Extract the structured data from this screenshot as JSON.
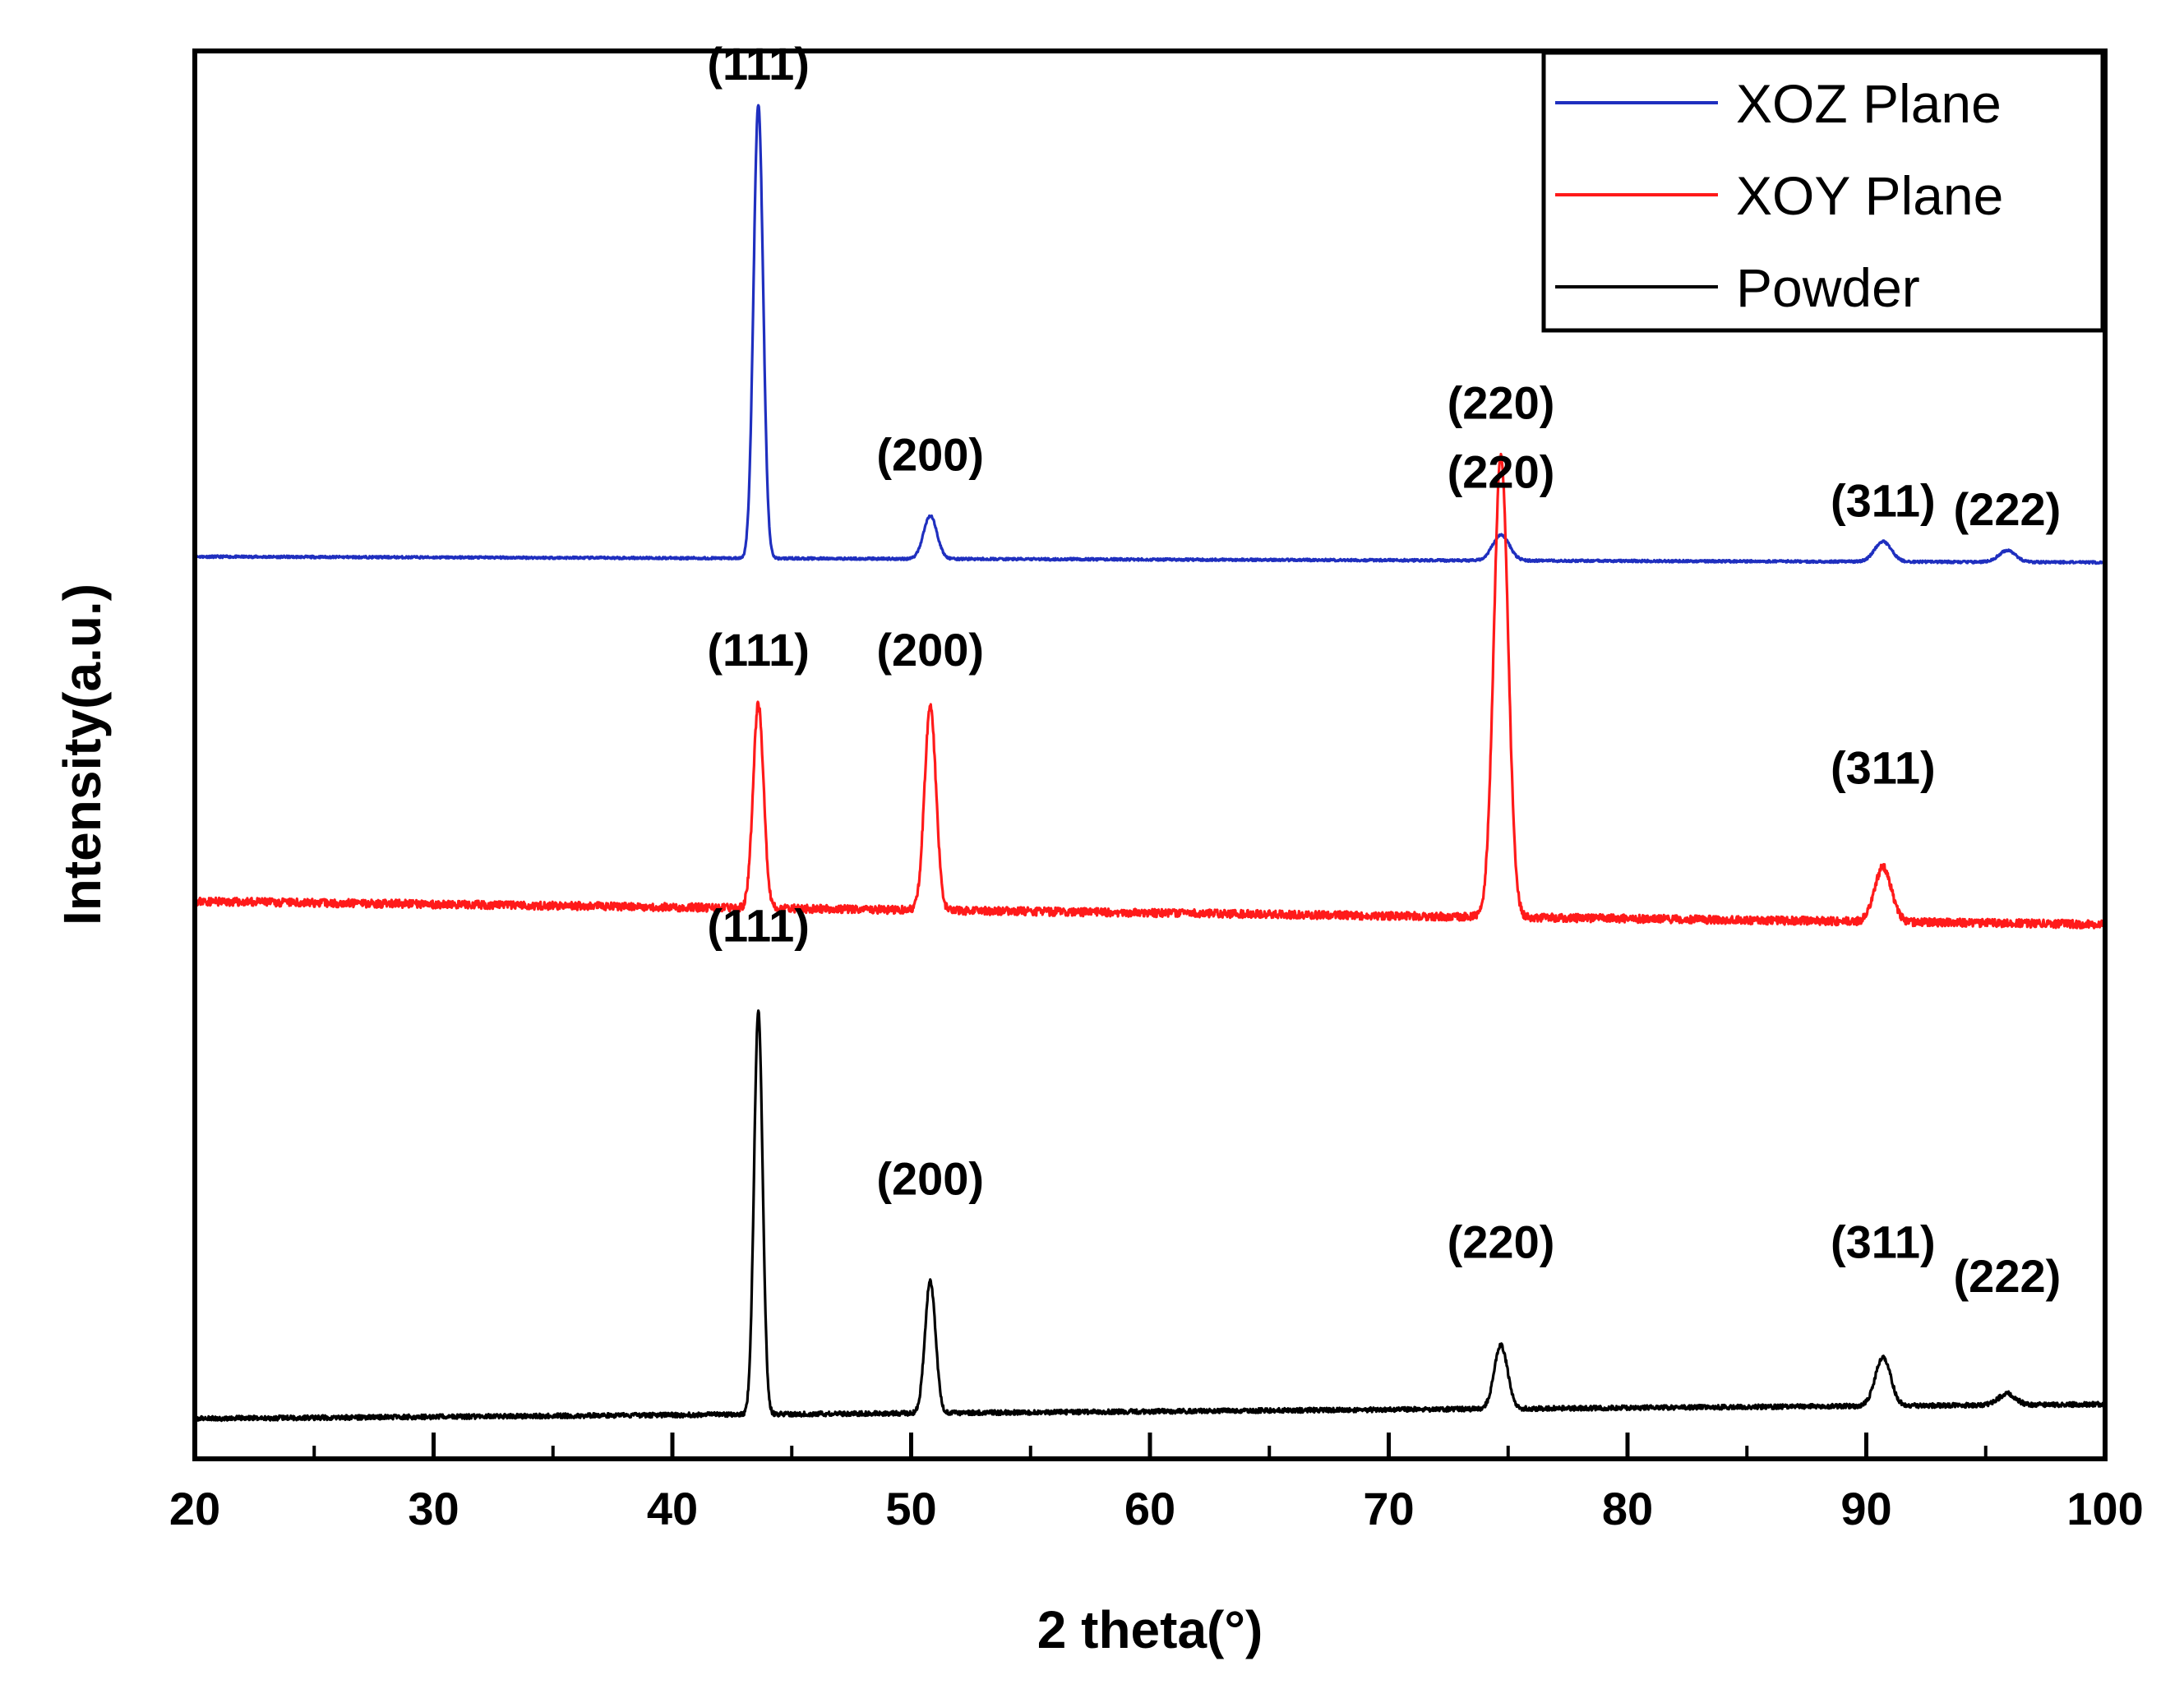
{
  "chart_data": {
    "type": "line",
    "title": "",
    "xlabel": "2 theta(°)",
    "ylabel": "Intensity(a.u.)",
    "xlim": [
      20,
      100
    ],
    "ylim": [
      0,
      4.9
    ],
    "grid": false,
    "legend_position": "top-right",
    "x_ticks": [
      20,
      30,
      40,
      50,
      60,
      70,
      80,
      90,
      100
    ],
    "x_tick_labels": [
      "20",
      "30",
      "40",
      "50",
      "60",
      "70",
      "80",
      "90",
      "100"
    ],
    "x_minor_ticks": [
      25,
      35,
      45,
      55,
      65,
      75,
      85,
      95
    ],
    "series": [
      {
        "name": "XOZ Plane",
        "color": "#1f2fbf",
        "baseline_start": 3.14,
        "baseline_end": 3.12,
        "noise": 0.004,
        "seed": 11,
        "peaks": [
          {
            "x": 43.6,
            "height": 1.58,
            "width": 0.2
          },
          {
            "x": 50.8,
            "height": 0.15,
            "width": 0.28
          },
          {
            "x": 74.7,
            "height": 0.09,
            "width": 0.35
          },
          {
            "x": 90.7,
            "height": 0.07,
            "width": 0.35
          },
          {
            "x": 95.9,
            "height": 0.04,
            "width": 0.35
          }
        ]
      },
      {
        "name": "XOY Plane",
        "color": "#ff1a1a",
        "baseline_start": 1.94,
        "baseline_end": 1.86,
        "noise": 0.014,
        "seed": 23,
        "peaks": [
          {
            "x": 43.6,
            "height": 0.71,
            "width": 0.22
          },
          {
            "x": 50.8,
            "height": 0.71,
            "width": 0.24
          },
          {
            "x": 74.7,
            "height": 1.61,
            "width": 0.3
          },
          {
            "x": 90.7,
            "height": 0.19,
            "width": 0.35
          }
        ]
      },
      {
        "name": "Powder",
        "color": "#000000",
        "baseline_start": 0.14,
        "baseline_end": 0.19,
        "noise": 0.008,
        "seed": 37,
        "peaks": [
          {
            "x": 43.6,
            "height": 1.4,
            "width": 0.18
          },
          {
            "x": 50.8,
            "height": 0.46,
            "width": 0.22
          },
          {
            "x": 74.7,
            "height": 0.22,
            "width": 0.28
          },
          {
            "x": 90.7,
            "height": 0.17,
            "width": 0.32
          },
          {
            "x": 95.9,
            "height": 0.04,
            "width": 0.35
          }
        ]
      }
    ],
    "annotations": [
      {
        "text": "(111)",
        "x": 43.6,
        "y": 4.8,
        "series": "XOZ Plane"
      },
      {
        "text": "(200)",
        "x": 50.8,
        "y": 3.44,
        "series": "XOZ Plane"
      },
      {
        "text": "(220)",
        "x": 74.7,
        "y": 3.38,
        "series": "XOZ Plane"
      },
      {
        "text": "(311)",
        "x": 90.7,
        "y": 3.28,
        "series": "XOZ Plane"
      },
      {
        "text": "(222)",
        "x": 95.9,
        "y": 3.25,
        "series": "XOZ Plane"
      },
      {
        "text": "(220)",
        "x": 74.7,
        "y": 3.62,
        "series": "XOZ Plane"
      },
      {
        "text": "(111)",
        "x": 43.6,
        "y": 2.76,
        "series": "XOY Plane"
      },
      {
        "text": "(200)",
        "x": 50.8,
        "y": 2.76,
        "series": "XOY Plane"
      },
      {
        "text": "(311)",
        "x": 90.7,
        "y": 2.35,
        "series": "XOY Plane"
      },
      {
        "text": "(111)",
        "x": 43.6,
        "y": 1.8,
        "series": "Powder"
      },
      {
        "text": "(200)",
        "x": 50.8,
        "y": 0.92,
        "series": "Powder"
      },
      {
        "text": "(220)",
        "x": 74.7,
        "y": 0.7,
        "series": "Powder"
      },
      {
        "text": "(311)",
        "x": 90.7,
        "y": 0.7,
        "series": "Powder"
      },
      {
        "text": "(222)",
        "x": 95.9,
        "y": 0.58,
        "series": "Powder"
      }
    ]
  }
}
